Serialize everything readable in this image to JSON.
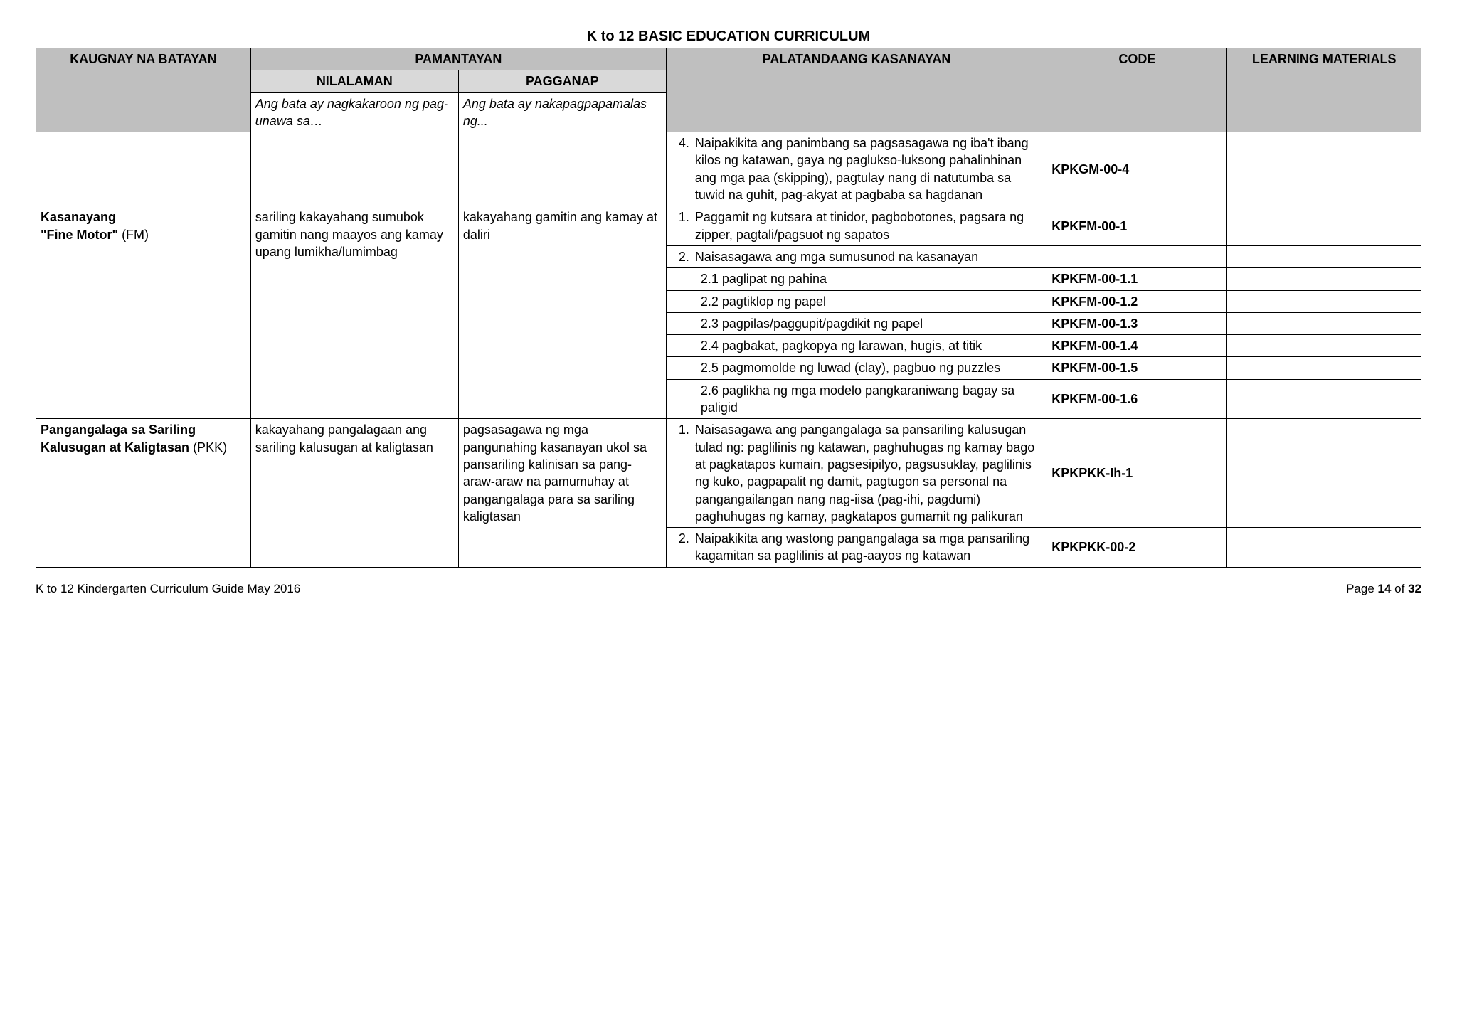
{
  "page_title": "K to 12 BASIC EDUCATION CURRICULUM",
  "columns": {
    "col1": "KAUGNAY NA BATAYAN",
    "pamantayan": "PAMANTAYAN",
    "nilalaman": "NILALAMAN",
    "pagganap": "PAGGANAP",
    "nilalaman_sub": "Ang bata ay nagkakaroon ng pag-unawa sa…",
    "pagganap_sub": "Ang bata ay nakapagpapamalas ng...",
    "palat": "PALATANDAANG KASANAYAN",
    "code": "CODE",
    "lm": "LEARNING MATERIALS"
  },
  "rows": {
    "r0": {
      "palat_num": "4.",
      "palat": "Naipakikita ang panimbang sa pagsasagawa  ng iba't ibang kilos ng katawan, gaya ng paglukso-luksong pahalinhinan ang mga paa (skipping), pagtulay nang di natutumba sa tuwid na guhit,  pag-akyat at pagbaba sa hagdanan",
      "code": "KPKGM-00-4"
    },
    "fm": {
      "label_bold": "Kasanayang \"Fine Motor\"",
      "label_plain": " (FM)",
      "nilalaman": "sariling kakayahang sumubok gamitin nang maayos ang kamay upang lumikha/lumimbag",
      "pagganap": "kakayahang gamitin ang kamay at daliri",
      "items": [
        {
          "num": "1.",
          "txt": "Paggamit ng kutsara at tinidor, pagbobotones, pagsara ng zipper, pagtali/pagsuot ng sapatos",
          "code": "KPKFM-00-1"
        },
        {
          "num": "2.",
          "txt": "Naisasagawa ang mga sumusunod na kasanayan",
          "code": ""
        },
        {
          "sub": true,
          "txt": "2.1 paglipat ng pahina",
          "code": "KPKFM-00-1.1"
        },
        {
          "sub": true,
          "txt": "2.2 pagtiklop ng papel",
          "code": "KPKFM-00-1.2"
        },
        {
          "sub": true,
          "txt": "2.3 pagpilas/paggupit/pagdikit ng papel",
          "code": "KPKFM-00-1.3"
        },
        {
          "sub": true,
          "txt": "2.4 pagbakat, pagkopya ng larawan, hugis, at titik",
          "code": "KPKFM-00-1.4"
        },
        {
          "sub": true,
          "txt": "2.5 pagmomolde ng luwad (clay), pagbuo ng puzzles",
          "code": "KPKFM-00-1.5"
        },
        {
          "sub": true,
          "txt": "2.6 paglikha ng mga modelo pangkaraniwang bagay sa paligid",
          "code": "KPKFM-00-1.6"
        }
      ]
    },
    "pkk": {
      "label_bold": "Pangangalaga sa Sariling Kalusugan at Kaligtasan",
      "label_plain": " (PKK)",
      "nilalaman": "kakayahang pangalagaan ang sariling kalusugan at kaligtasan",
      "pagganap": "pagsasagawa ng mga pangunahing kasanayan ukol sa pansariling kalinisan sa pang-araw-araw na pamumuhay at pangangalaga para sa sariling kaligtasan",
      "items": [
        {
          "num": "1.",
          "txt": "Naisasagawa ang pangangalaga sa pansariling kalusugan tulad ng: paglilinis ng katawan, paghuhugas ng kamay bago at pagkatapos kumain, pagsesipilyo, pagsusuklay, paglilinis ng kuko, pagpapalit ng damit, pagtugon sa personal na pangangailangan nang nag-iisa (pag-ihi, pagdumi) paghuhugas ng kamay, pagkatapos gumamit ng palikuran",
          "code": "KPKPKK-Ih-1"
        },
        {
          "num": "2.",
          "txt": "Naipakikita ang wastong pangangalaga sa mga pansariling kagamitan sa paglilinis at pag-aayos ng katawan",
          "code": "KPKPKK-00-2"
        }
      ]
    }
  },
  "footer": {
    "left": "K to 12 Kindergarten Curriculum Guide May 2016",
    "right_prefix": "Page ",
    "right_page": "14",
    "right_mid": " of ",
    "right_total": "32"
  }
}
